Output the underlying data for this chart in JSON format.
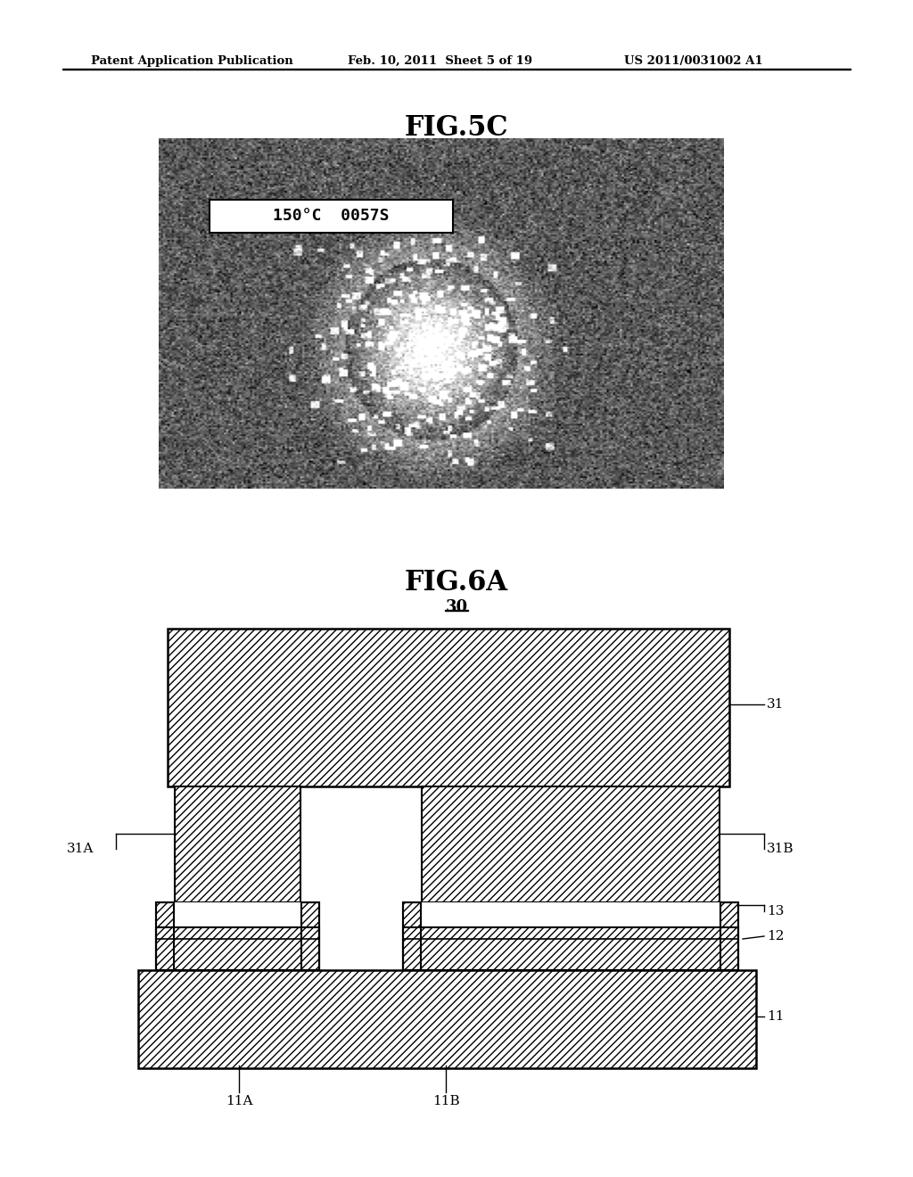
{
  "page_header_left": "Patent Application Publication",
  "page_header_center": "Feb. 10, 2011  Sheet 5 of 19",
  "page_header_right": "US 2011/0031002 A1",
  "fig5c_title": "FIG.5C",
  "fig6a_title": "FIG.6A",
  "label_30": "30",
  "label_31": "31",
  "label_31A": "31A",
  "label_31B": "31B",
  "label_13": "13",
  "label_12": "12",
  "label_11": "11",
  "label_11A": "11A",
  "label_11B": "11B",
  "overlay_text": "150°C  0057S",
  "bg_color": "#ffffff"
}
